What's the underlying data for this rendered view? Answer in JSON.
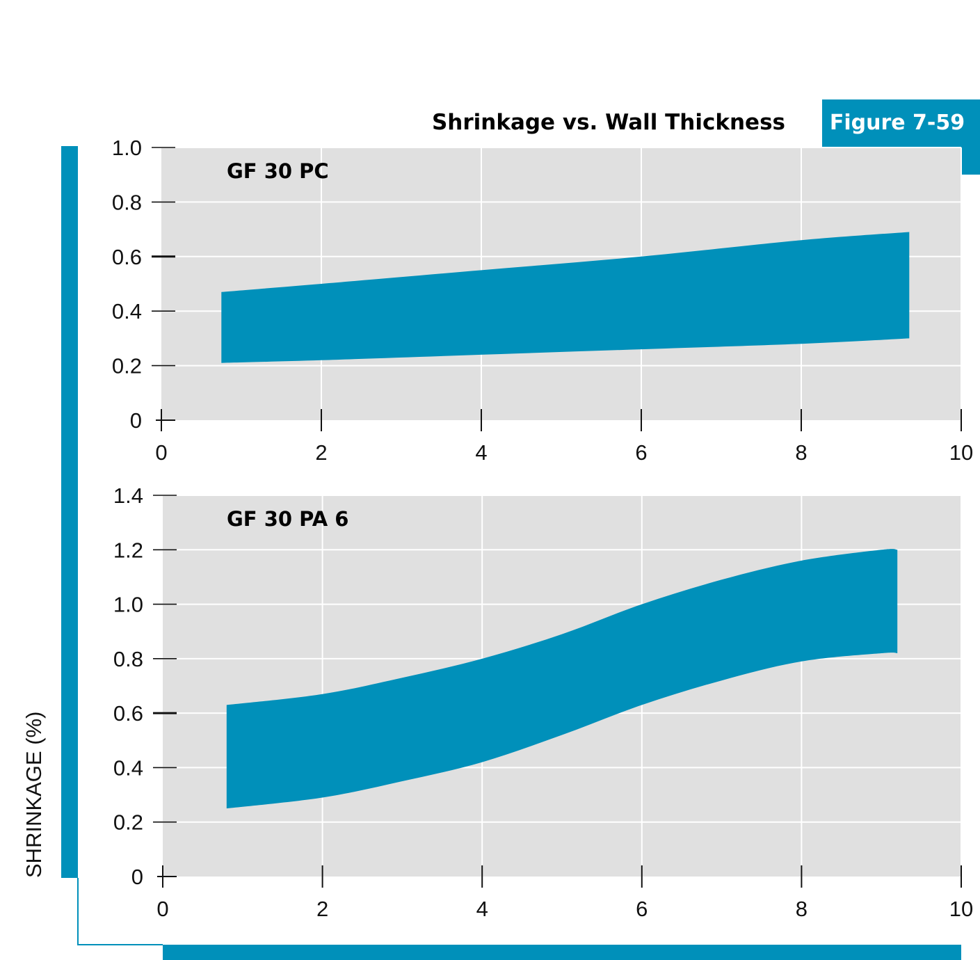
{
  "header": {
    "title": "Shrinkage vs. Wall Thickness",
    "figure_badge": "Figure 7-59"
  },
  "colors": {
    "accent": "#0090BA",
    "plot_background": "#E0E0E0",
    "gridline": "#FFFFFF",
    "band": "#0090BA"
  },
  "chart_data": [
    {
      "type": "area",
      "label": "GF 30 PC",
      "xlim": [
        0,
        10
      ],
      "ylim": [
        0,
        1.0
      ],
      "x_ticks": [
        0,
        2,
        4,
        6,
        8,
        10
      ],
      "y_ticks": [
        0,
        0.2,
        0.4,
        0.6,
        0.8,
        1.0
      ],
      "x_tick_labels": [
        "0",
        "2",
        "4",
        "6",
        "8",
        "10"
      ],
      "y_tick_labels": [
        "0",
        "0.2",
        "0.4",
        "0.6",
        "0.8",
        "1.0"
      ],
      "grid": true,
      "band": {
        "x": [
          0.75,
          2,
          4,
          6,
          8,
          9.35
        ],
        "upper": [
          0.47,
          0.5,
          0.55,
          0.6,
          0.66,
          0.69
        ],
        "lower": [
          0.21,
          0.22,
          0.24,
          0.26,
          0.28,
          0.3
        ]
      }
    },
    {
      "type": "area",
      "label": "GF 30 PA 6",
      "xlim": [
        0,
        10
      ],
      "ylim": [
        0,
        1.4
      ],
      "x_ticks": [
        0,
        2,
        4,
        6,
        8,
        10
      ],
      "y_ticks": [
        0,
        0.2,
        0.4,
        0.6,
        0.8,
        1.0,
        1.2,
        1.4
      ],
      "x_tick_labels": [
        "0",
        "2",
        "4",
        "6",
        "8",
        "10"
      ],
      "y_tick_labels": [
        "0",
        "0.2",
        "0.4",
        "0.6",
        "0.8",
        "1.0",
        "1.2",
        "1.4"
      ],
      "grid": true,
      "band": {
        "x": [
          0.8,
          2,
          3,
          4,
          5,
          6,
          7,
          8,
          9,
          9.2
        ],
        "upper": [
          0.63,
          0.67,
          0.73,
          0.8,
          0.89,
          1.0,
          1.09,
          1.16,
          1.2,
          1.2
        ],
        "lower": [
          0.25,
          0.29,
          0.35,
          0.42,
          0.52,
          0.63,
          0.72,
          0.79,
          0.82,
          0.82
        ]
      }
    }
  ],
  "ylabel": "SHRINKAGE (%)"
}
